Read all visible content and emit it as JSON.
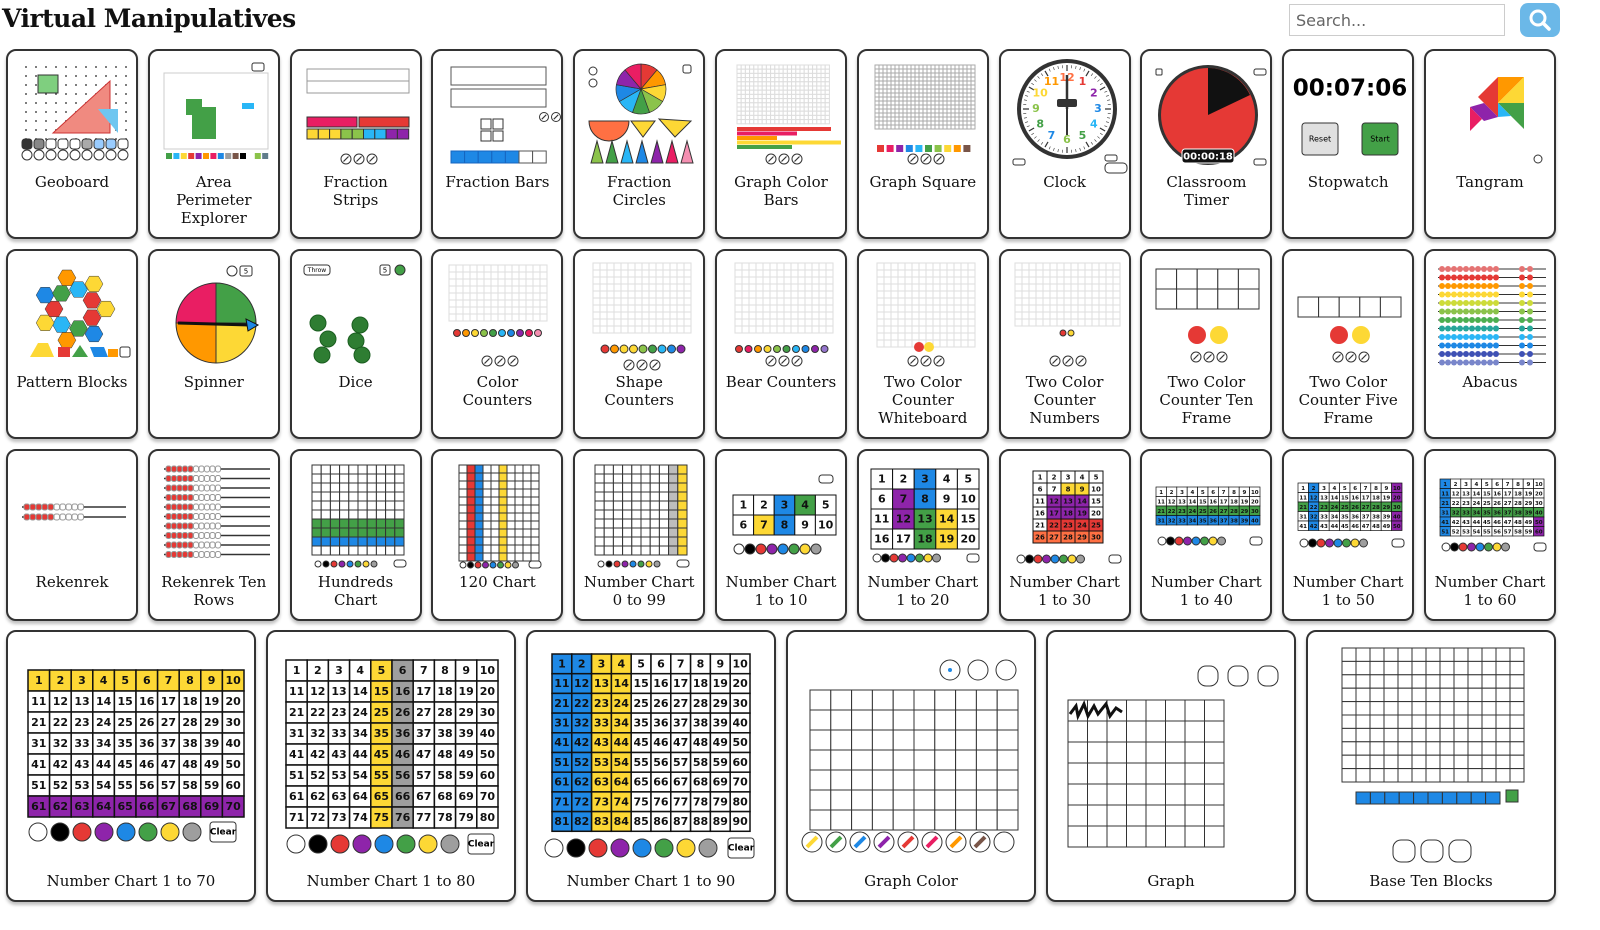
{
  "header": {
    "title": "Virtual Manipulatives",
    "search_placeholder": "Search..."
  },
  "numbers": [
    1,
    2,
    3,
    4,
    5,
    6,
    7,
    8,
    9,
    10,
    11,
    12,
    13,
    14,
    15,
    16,
    17,
    18,
    19,
    20,
    21,
    22,
    23,
    24,
    25,
    26,
    27,
    28,
    29,
    30,
    31,
    32,
    33,
    34,
    35,
    36,
    37,
    38,
    39,
    40,
    41,
    42,
    43,
    44,
    45,
    46,
    47,
    48,
    49,
    50,
    51,
    52,
    53,
    54,
    55,
    56,
    57,
    58,
    59,
    60,
    61,
    62,
    63,
    64,
    65,
    66,
    67,
    68,
    69,
    70,
    71,
    72,
    73,
    74,
    75,
    76,
    77,
    78,
    79,
    80,
    81,
    82,
    83,
    84,
    85,
    86,
    87,
    88,
    89,
    90
  ],
  "tiles": [
    {
      "lines": [
        "Geoboard"
      ]
    },
    {
      "lines": [
        "Area",
        "Perimeter",
        "Explorer"
      ]
    },
    {
      "lines": [
        "Fraction",
        "Strips"
      ]
    },
    {
      "lines": [
        "Fraction Bars"
      ]
    },
    {
      "lines": [
        "Fraction",
        "Circles"
      ]
    },
    {
      "lines": [
        "Graph Color",
        "Bars"
      ]
    },
    {
      "lines": [
        "Graph Square"
      ]
    },
    {
      "lines": [
        "Clock"
      ]
    },
    {
      "lines": [
        "Classroom",
        "Timer"
      ],
      "texts": [
        "00:00:18"
      ]
    },
    {
      "lines": [
        "Stopwatch"
      ],
      "texts": [
        "00:07:06",
        "Reset",
        "Start"
      ]
    },
    {
      "lines": [
        "Tangram"
      ]
    },
    {
      "lines": [
        "Pattern Blocks"
      ]
    },
    {
      "lines": [
        "Spinner"
      ],
      "texts": [
        "5"
      ]
    },
    {
      "lines": [
        "Dice"
      ],
      "texts": [
        "Throw",
        "5"
      ]
    },
    {
      "lines": [
        "Color",
        "Counters"
      ]
    },
    {
      "lines": [
        "Shape",
        "Counters"
      ]
    },
    {
      "lines": [
        "Bear Counters"
      ]
    },
    {
      "lines": [
        "Two Color",
        "Counter",
        "Whiteboard"
      ]
    },
    {
      "lines": [
        "Two Color",
        "Counter",
        "Numbers"
      ]
    },
    {
      "lines": [
        "Two Color",
        "Counter Ten",
        "Frame"
      ]
    },
    {
      "lines": [
        "Two Color",
        "Counter Five",
        "Frame"
      ]
    },
    {
      "lines": [
        "Abacus"
      ]
    },
    {
      "lines": [
        "Rekenrek"
      ]
    },
    {
      "lines": [
        "Rekenrek Ten",
        "Rows"
      ]
    },
    {
      "lines": [
        "Hundreds",
        "Chart"
      ]
    },
    {
      "lines": [
        "120 Chart"
      ]
    },
    {
      "lines": [
        "Number Chart",
        "0 to 99"
      ]
    },
    {
      "lines": [
        "Number Chart",
        "1 to 10"
      ]
    },
    {
      "lines": [
        "Number Chart",
        "1 to 20"
      ]
    },
    {
      "lines": [
        "Number Chart",
        "1 to 30"
      ]
    },
    {
      "lines": [
        "Number Chart",
        "1 to 40"
      ]
    },
    {
      "lines": [
        "Number Chart",
        "1 to 50"
      ]
    },
    {
      "lines": [
        "Number Chart",
        "1 to 60"
      ]
    },
    {
      "lines": [
        "Number Chart 1 to 70"
      ],
      "texts": [
        "Clear"
      ]
    },
    {
      "lines": [
        "Number Chart 1 to 80"
      ],
      "texts": [
        "Clear"
      ]
    },
    {
      "lines": [
        "Number Chart 1 to 90"
      ],
      "texts": [
        "Clear"
      ]
    },
    {
      "lines": [
        "Graph Color"
      ]
    },
    {
      "lines": [
        "Graph"
      ]
    },
    {
      "lines": [
        "Base Ten Blocks"
      ]
    }
  ]
}
